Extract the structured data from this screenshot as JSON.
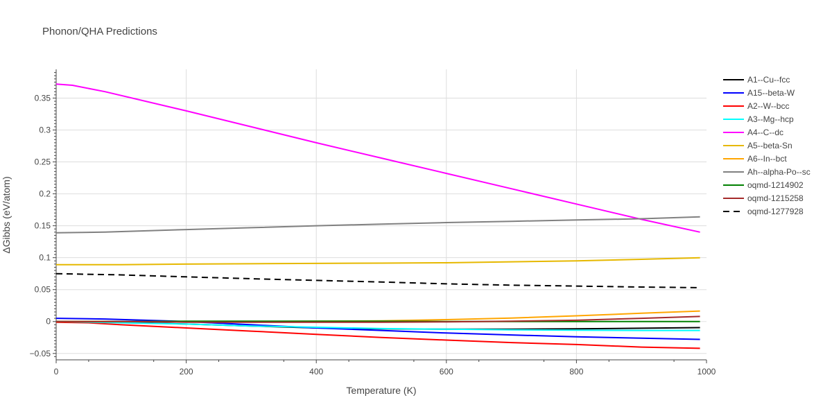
{
  "chart_data": {
    "type": "line",
    "title": "Phonon/QHA Predictions",
    "xlabel": "Temperature (K)",
    "ylabel": "ΔGibbs (eV/atom)",
    "xlim": [
      0,
      1000
    ],
    "ylim": [
      -0.06,
      0.395
    ],
    "xticks": [
      0,
      200,
      400,
      600,
      800,
      1000
    ],
    "xtick_labels": [
      "0",
      "200",
      "400",
      "600",
      "800",
      "1000"
    ],
    "yticks": [
      -0.05,
      0,
      0.05,
      0.1,
      0.15,
      0.2,
      0.25,
      0.3,
      0.35
    ],
    "ytick_labels": [
      "−0.05",
      "0",
      "0.05",
      "0.1",
      "0.15",
      "0.2",
      "0.25",
      "0.3",
      "0.35"
    ],
    "grid": true,
    "legend_position": "right",
    "series": [
      {
        "name": "A1--Cu--fcc",
        "color": "#000000",
        "dash": "solid",
        "x": [
          0,
          100,
          200,
          300,
          400,
          500,
          600,
          700,
          800,
          900,
          990
        ],
        "y": [
          0.0,
          -0.001,
          -0.004,
          -0.007,
          -0.01,
          -0.0115,
          -0.012,
          -0.012,
          -0.0115,
          -0.0105,
          -0.0095
        ]
      },
      {
        "name": "A15--beta-W",
        "color": "#0000ff",
        "dash": "solid",
        "x": [
          0,
          75,
          200,
          300,
          400,
          500,
          600,
          700,
          800,
          900,
          990
        ],
        "y": [
          0.005,
          0.004,
          0.0,
          -0.005,
          -0.01,
          -0.014,
          -0.018,
          -0.021,
          -0.024,
          -0.026,
          -0.028
        ]
      },
      {
        "name": "A2--W--bcc",
        "color": "#ff0000",
        "dash": "solid",
        "x": [
          0,
          50,
          100,
          200,
          300,
          400,
          500,
          600,
          700,
          800,
          900,
          990
        ],
        "y": [
          -0.001,
          -0.002,
          -0.005,
          -0.01,
          -0.015,
          -0.02,
          -0.025,
          -0.029,
          -0.033,
          -0.036,
          -0.04,
          -0.042
        ]
      },
      {
        "name": "A3--Mg--hcp",
        "color": "#00ffff",
        "dash": "solid",
        "x": [
          0,
          100,
          200,
          300,
          400,
          500,
          600,
          700,
          800,
          900,
          990
        ],
        "y": [
          0.0,
          -0.002,
          -0.004,
          -0.007,
          -0.009,
          -0.011,
          -0.012,
          -0.013,
          -0.0135,
          -0.014,
          -0.014
        ]
      },
      {
        "name": "A4--C--dc",
        "color": "#ff00ff",
        "dash": "solid",
        "x": [
          0,
          25,
          75,
          200,
          300,
          400,
          500,
          600,
          700,
          800,
          900,
          990
        ],
        "y": [
          0.372,
          0.37,
          0.36,
          0.33,
          0.305,
          0.28,
          0.256,
          0.232,
          0.208,
          0.184,
          0.16,
          0.14
        ]
      },
      {
        "name": "A5--beta-Sn",
        "color": "#e6b800",
        "dash": "solid",
        "x": [
          0,
          100,
          200,
          300,
          400,
          500,
          600,
          700,
          800,
          900,
          990
        ],
        "y": [
          0.089,
          0.089,
          0.09,
          0.0905,
          0.091,
          0.0915,
          0.092,
          0.0935,
          0.095,
          0.0975,
          0.1
        ]
      },
      {
        "name": "A6--In--bct",
        "color": "#ffa500",
        "dash": "solid",
        "x": [
          0,
          100,
          200,
          300,
          400,
          500,
          600,
          700,
          800,
          900,
          990
        ],
        "y": [
          0.0,
          0.0,
          0.0,
          0.0,
          0.0005,
          0.001,
          0.003,
          0.0055,
          0.009,
          0.013,
          0.0165
        ]
      },
      {
        "name": "Ah--alpha-Po--sc",
        "color": "#808080",
        "dash": "solid",
        "x": [
          0,
          75,
          200,
          300,
          400,
          500,
          600,
          700,
          800,
          900,
          990
        ],
        "y": [
          0.139,
          0.14,
          0.144,
          0.147,
          0.15,
          0.1525,
          0.155,
          0.157,
          0.159,
          0.161,
          0.164
        ]
      },
      {
        "name": "oqmd-1214902",
        "color": "#008000",
        "dash": "solid",
        "x": [
          0,
          100,
          200,
          300,
          400,
          500,
          600,
          700,
          800,
          900,
          990
        ],
        "y": [
          0.0,
          0.0,
          0.0005,
          0.0005,
          0.0005,
          0.0005,
          0.0,
          0.0,
          0.0,
          0.0,
          0.0
        ]
      },
      {
        "name": "oqmd-1215258",
        "color": "#a52a2a",
        "dash": "solid",
        "x": [
          0,
          100,
          200,
          300,
          400,
          500,
          600,
          700,
          800,
          900,
          990
        ],
        "y": [
          0.0,
          0.0,
          -0.001,
          -0.001,
          -0.001,
          -0.001,
          -0.0005,
          0.0005,
          0.002,
          0.005,
          0.008
        ]
      },
      {
        "name": "oqmd-1277928",
        "color": "#000000",
        "dash": "dash",
        "x": [
          0,
          100,
          200,
          300,
          400,
          500,
          600,
          700,
          800,
          900,
          990
        ],
        "y": [
          0.075,
          0.073,
          0.07,
          0.067,
          0.0645,
          0.062,
          0.059,
          0.057,
          0.0555,
          0.054,
          0.053
        ]
      }
    ]
  }
}
